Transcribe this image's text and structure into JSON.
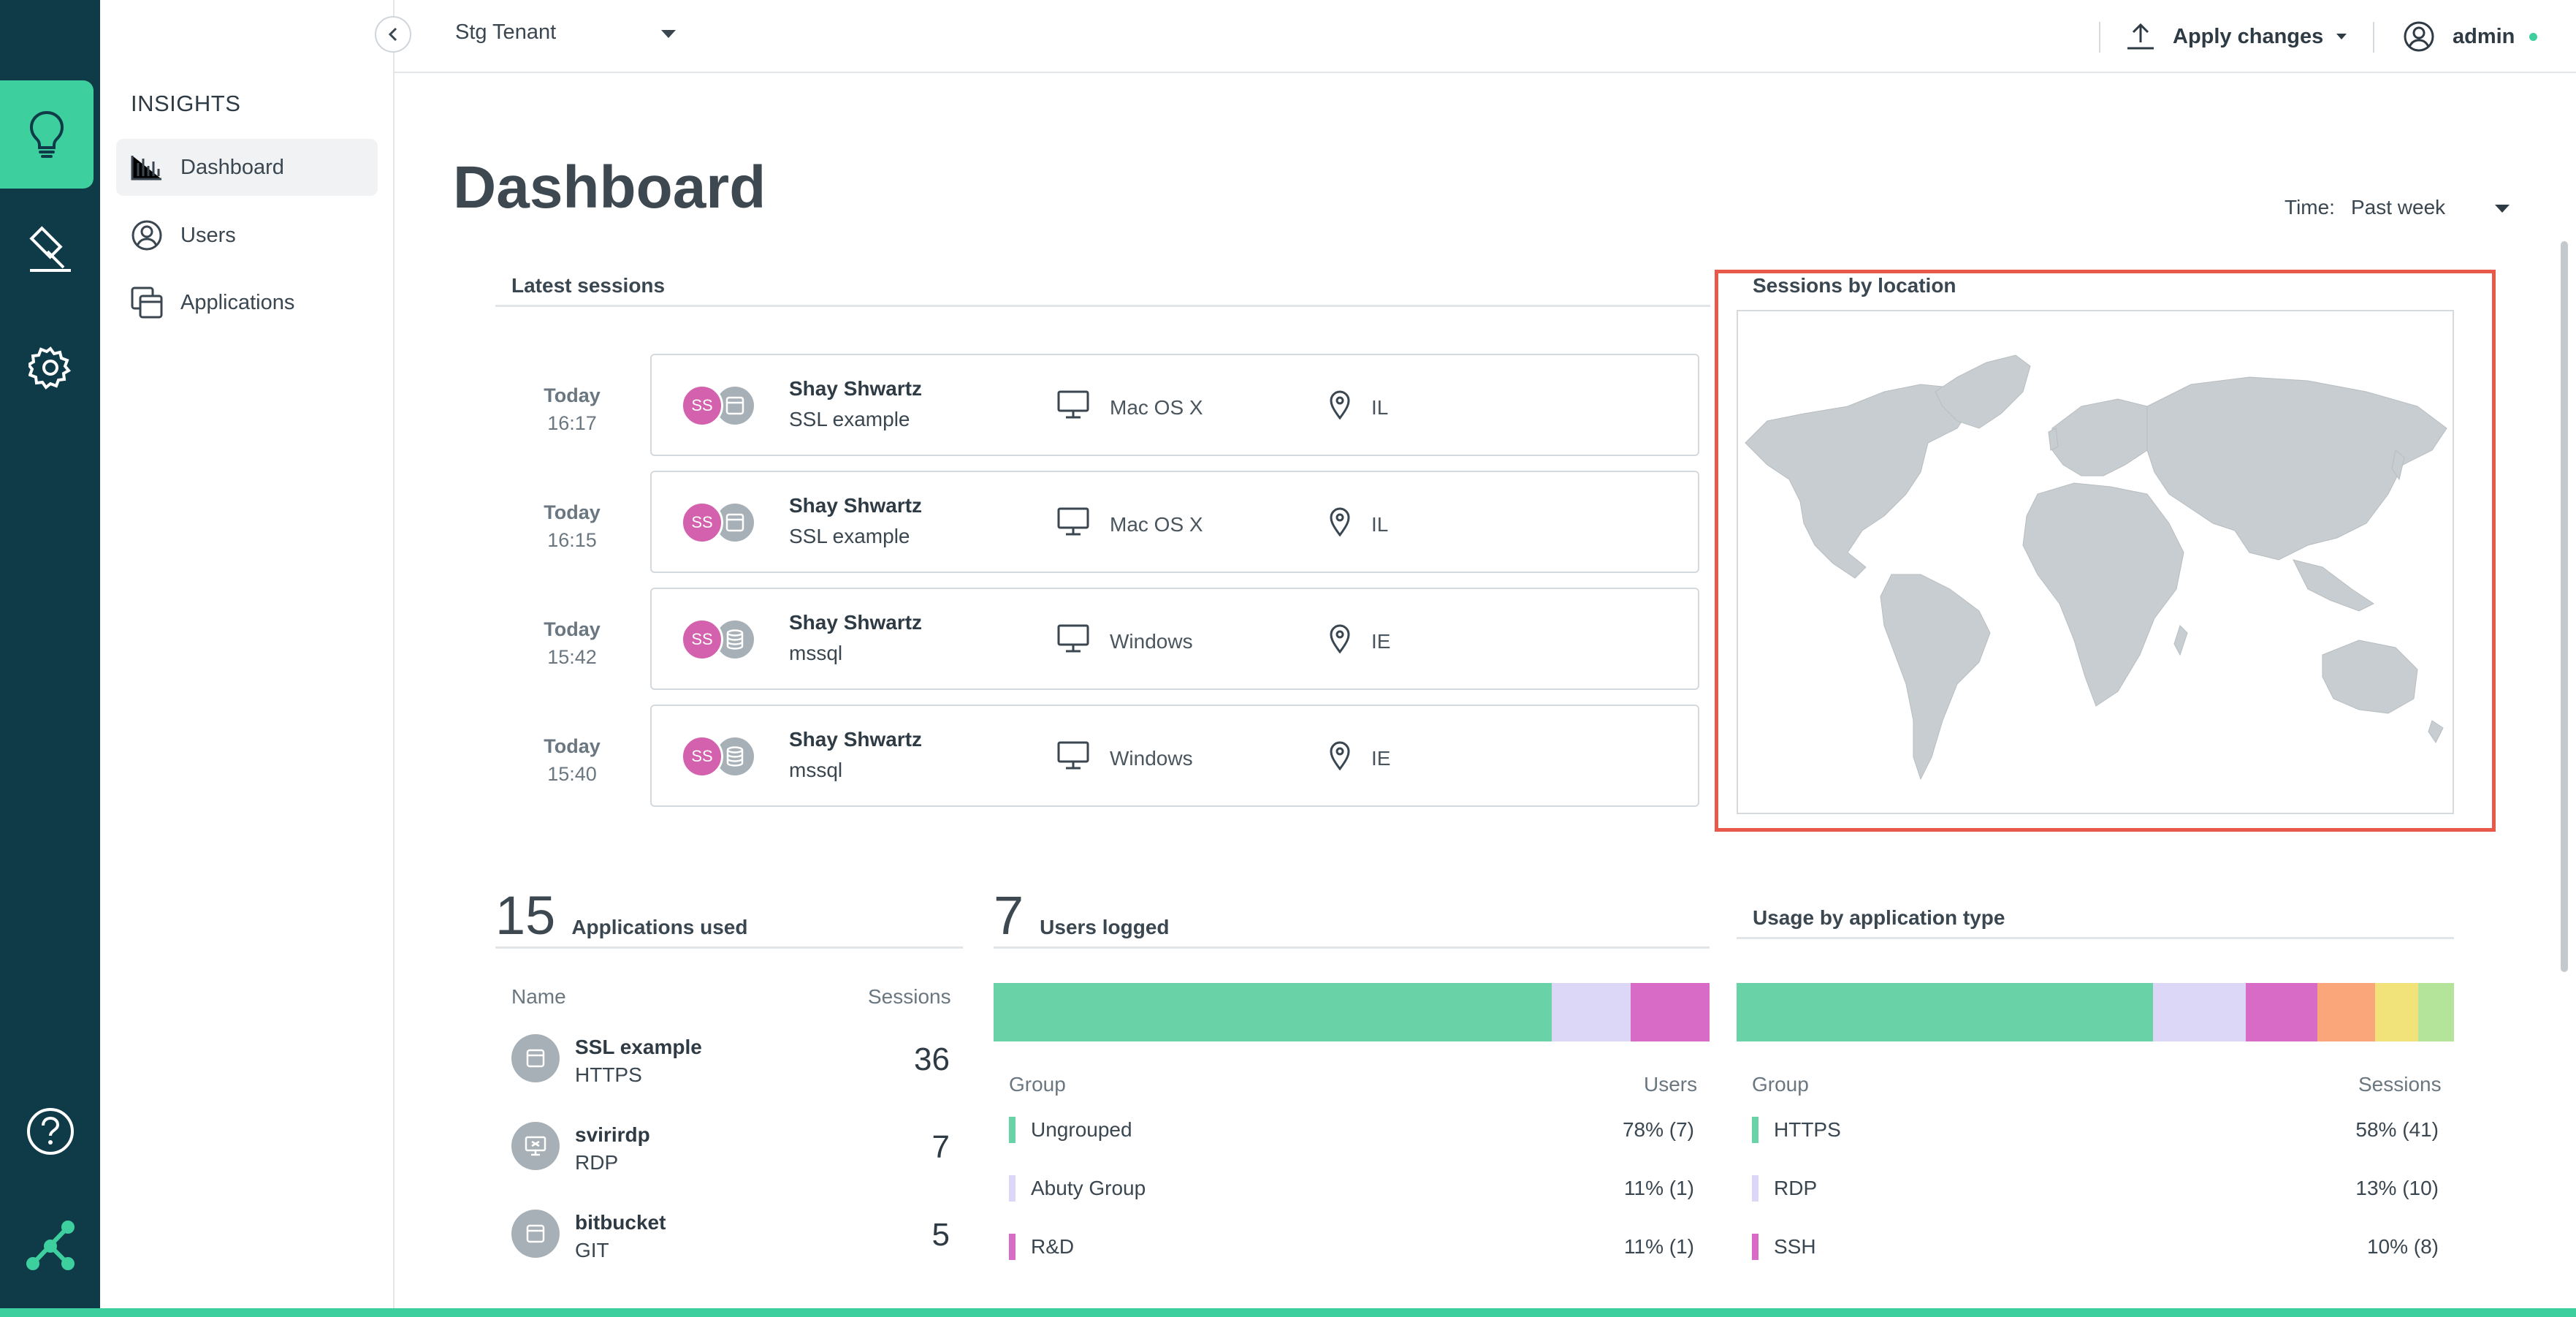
{
  "nav": {
    "section_title": "INSIGHTS",
    "items": [
      {
        "label": "Dashboard",
        "icon": "bar-chart-icon",
        "selected": true
      },
      {
        "label": "Users",
        "icon": "user-circle-icon",
        "selected": false
      },
      {
        "label": "Applications",
        "icon": "applications-icon",
        "selected": false
      }
    ]
  },
  "topbar": {
    "tenant": "Stg Tenant",
    "apply_label": "Apply changes",
    "user": "admin"
  },
  "page": {
    "title": "Dashboard",
    "time_label": "Time:",
    "time_value": "Past week"
  },
  "latest_sessions": {
    "title": "Latest sessions",
    "rows": [
      {
        "day": "Today",
        "time": "16:17",
        "initials": "SS",
        "user": "Shay Shwartz",
        "app": "SSL example",
        "os": "Mac OS X",
        "loc": "IL",
        "app_icon": "window-icon"
      },
      {
        "day": "Today",
        "time": "16:15",
        "initials": "SS",
        "user": "Shay Shwartz",
        "app": "SSL example",
        "os": "Mac OS X",
        "loc": "IL",
        "app_icon": "window-icon"
      },
      {
        "day": "Today",
        "time": "15:42",
        "initials": "SS",
        "user": "Shay Shwartz",
        "app": "mssql",
        "os": "Windows",
        "loc": "IE",
        "app_icon": "database-icon"
      },
      {
        "day": "Today",
        "time": "15:40",
        "initials": "SS",
        "user": "Shay Shwartz",
        "app": "mssql",
        "os": "Windows",
        "loc": "IE",
        "app_icon": "database-icon"
      }
    ]
  },
  "map": {
    "title": "Sessions by location",
    "land_color": "#c7cdd0"
  },
  "applications": {
    "count": "15",
    "label": "Applications used",
    "col_name": "Name",
    "col_sessions": "Sessions",
    "rows": [
      {
        "name": "SSL example",
        "type": "HTTPS",
        "sessions": "36",
        "icon": "window-icon"
      },
      {
        "name": "svirirdp",
        "type": "RDP",
        "sessions": "7",
        "icon": "remote-desktop-icon"
      },
      {
        "name": "bitbucket",
        "type": "GIT",
        "sessions": "5",
        "icon": "window-icon"
      }
    ]
  },
  "users_logged": {
    "count": "7",
    "label": "Users logged",
    "col_group": "Group",
    "col_value": "Users",
    "segments": [
      {
        "name": "Ungrouped",
        "value": "78% (7)",
        "share": 0.78,
        "color": "#69d3a7"
      },
      {
        "name": "Abuty Group",
        "value": "11% (1)",
        "share": 0.11,
        "color": "#dcd7f7"
      },
      {
        "name": "R&D",
        "value": "11% (1)",
        "share": 0.11,
        "color": "#d86bc6"
      }
    ]
  },
  "usage": {
    "label": "Usage by application type",
    "col_group": "Group",
    "col_value": "Sessions",
    "segments": [
      {
        "name": "HTTPS",
        "value": "58% (41)",
        "share": 0.58,
        "color": "#69d3a7"
      },
      {
        "name": "RDP",
        "value": "13% (10)",
        "share": 0.13,
        "color": "#dcd7f7"
      },
      {
        "name": "SSH",
        "value": "10% (8)",
        "share": 0.1,
        "color": "#d86bc6"
      },
      {
        "name": "",
        "value": "",
        "share": 0.08,
        "color": "#fba57a"
      },
      {
        "name": "",
        "value": "",
        "share": 0.06,
        "color": "#f2e27a"
      },
      {
        "name": "",
        "value": "",
        "share": 0.05,
        "color": "#b3e49a"
      }
    ]
  },
  "colors": {
    "rail": "#0f3b48",
    "accent": "#3ecf9f",
    "highlight_frame": "#e8594a",
    "avatar": "#d461ad"
  }
}
